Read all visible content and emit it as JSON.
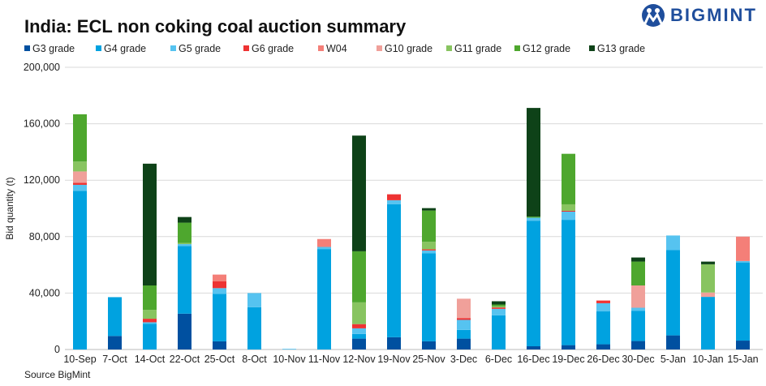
{
  "title": "India: ECL non coking coal auction summary",
  "logo": {
    "text": "BIGMINT"
  },
  "source": "Source BigMint",
  "chart_data": {
    "type": "bar",
    "stacked": true,
    "title": "India: ECL non coking coal auction summary",
    "ylabel": "Bid quantity (t)",
    "xlabel": "",
    "ylim": [
      0,
      200000
    ],
    "yticks": [
      0,
      40000,
      80000,
      120000,
      160000,
      200000
    ],
    "ytick_labels": [
      "0",
      "40,000",
      "80,000",
      "120,000",
      "160,000",
      "200,000"
    ],
    "grid": true,
    "legend_position": "top",
    "categories": [
      "10-Sep",
      "7-Oct",
      "14-Oct",
      "22-Oct",
      "25-Oct",
      "8-Oct",
      "10-Nov",
      "11-Nov",
      "12-Nov",
      "19-Nov",
      "25-Nov",
      "3-Dec",
      "6-Dec",
      "16-Dec",
      "19-Dec",
      "26-Dec",
      "30-Dec",
      "5-Jan",
      "10-Jan",
      "15-Jan"
    ],
    "series": [
      {
        "name": "G3 grade",
        "color": "#0050a0",
        "values": [
          0,
          9600,
          0,
          25400,
          5800,
          0,
          0,
          0,
          7700,
          8700,
          5800,
          7700,
          0,
          2300,
          3100,
          3700,
          6000,
          10000,
          0,
          6300
        ]
      },
      {
        "name": "G4 grade",
        "color": "#00a2e0",
        "values": [
          112500,
          27500,
          18300,
          48000,
          33700,
          30000,
          0,
          71200,
          3300,
          94200,
          62300,
          6200,
          24200,
          89000,
          88800,
          23300,
          21500,
          60400,
          37300,
          55400
        ]
      },
      {
        "name": "G5 grade",
        "color": "#56c3f0",
        "values": [
          4200,
          0,
          1000,
          1300,
          4000,
          10000,
          500,
          1500,
          4000,
          2900,
          2100,
          7100,
          4600,
          2100,
          5800,
          5800,
          2100,
          10400,
          0,
          1000
        ]
      },
      {
        "name": "G6 grade",
        "color": "#ee3333",
        "values": [
          1500,
          0,
          2500,
          0,
          4800,
          0,
          0,
          0,
          3000,
          4200,
          800,
          1300,
          1000,
          0,
          600,
          1900,
          0,
          0,
          0,
          0
        ]
      },
      {
        "name": "W04",
        "color": "#f47f78",
        "values": [
          0,
          0,
          0,
          0,
          4800,
          0,
          0,
          5600,
          0,
          0,
          0,
          0,
          0,
          0,
          0,
          0,
          0,
          0,
          0,
          17300
        ]
      },
      {
        "name": "G10 grade",
        "color": "#f0a09a",
        "values": [
          8000,
          0,
          0,
          0,
          0,
          0,
          0,
          0,
          0,
          0,
          0,
          13700,
          0,
          0,
          0,
          0,
          15800,
          0,
          3100,
          0
        ]
      },
      {
        "name": "G11 grade",
        "color": "#88c460",
        "values": [
          7000,
          0,
          6300,
          800,
          0,
          0,
          0,
          0,
          15400,
          0,
          5400,
          0,
          800,
          0,
          4600,
          0,
          0,
          0,
          20000,
          0
        ]
      },
      {
        "name": "G12 grade",
        "color": "#4ea72e",
        "values": [
          33500,
          0,
          17300,
          14400,
          0,
          0,
          0,
          0,
          36200,
          0,
          22100,
          0,
          1300,
          800,
          35800,
          0,
          16900,
          0,
          0,
          0
        ]
      },
      {
        "name": "G13 grade",
        "color": "#0e4218",
        "values": [
          0,
          0,
          86300,
          4000,
          0,
          0,
          0,
          0,
          82000,
          0,
          1700,
          0,
          2300,
          77000,
          0,
          0,
          2900,
          0,
          1900,
          0
        ]
      }
    ]
  }
}
